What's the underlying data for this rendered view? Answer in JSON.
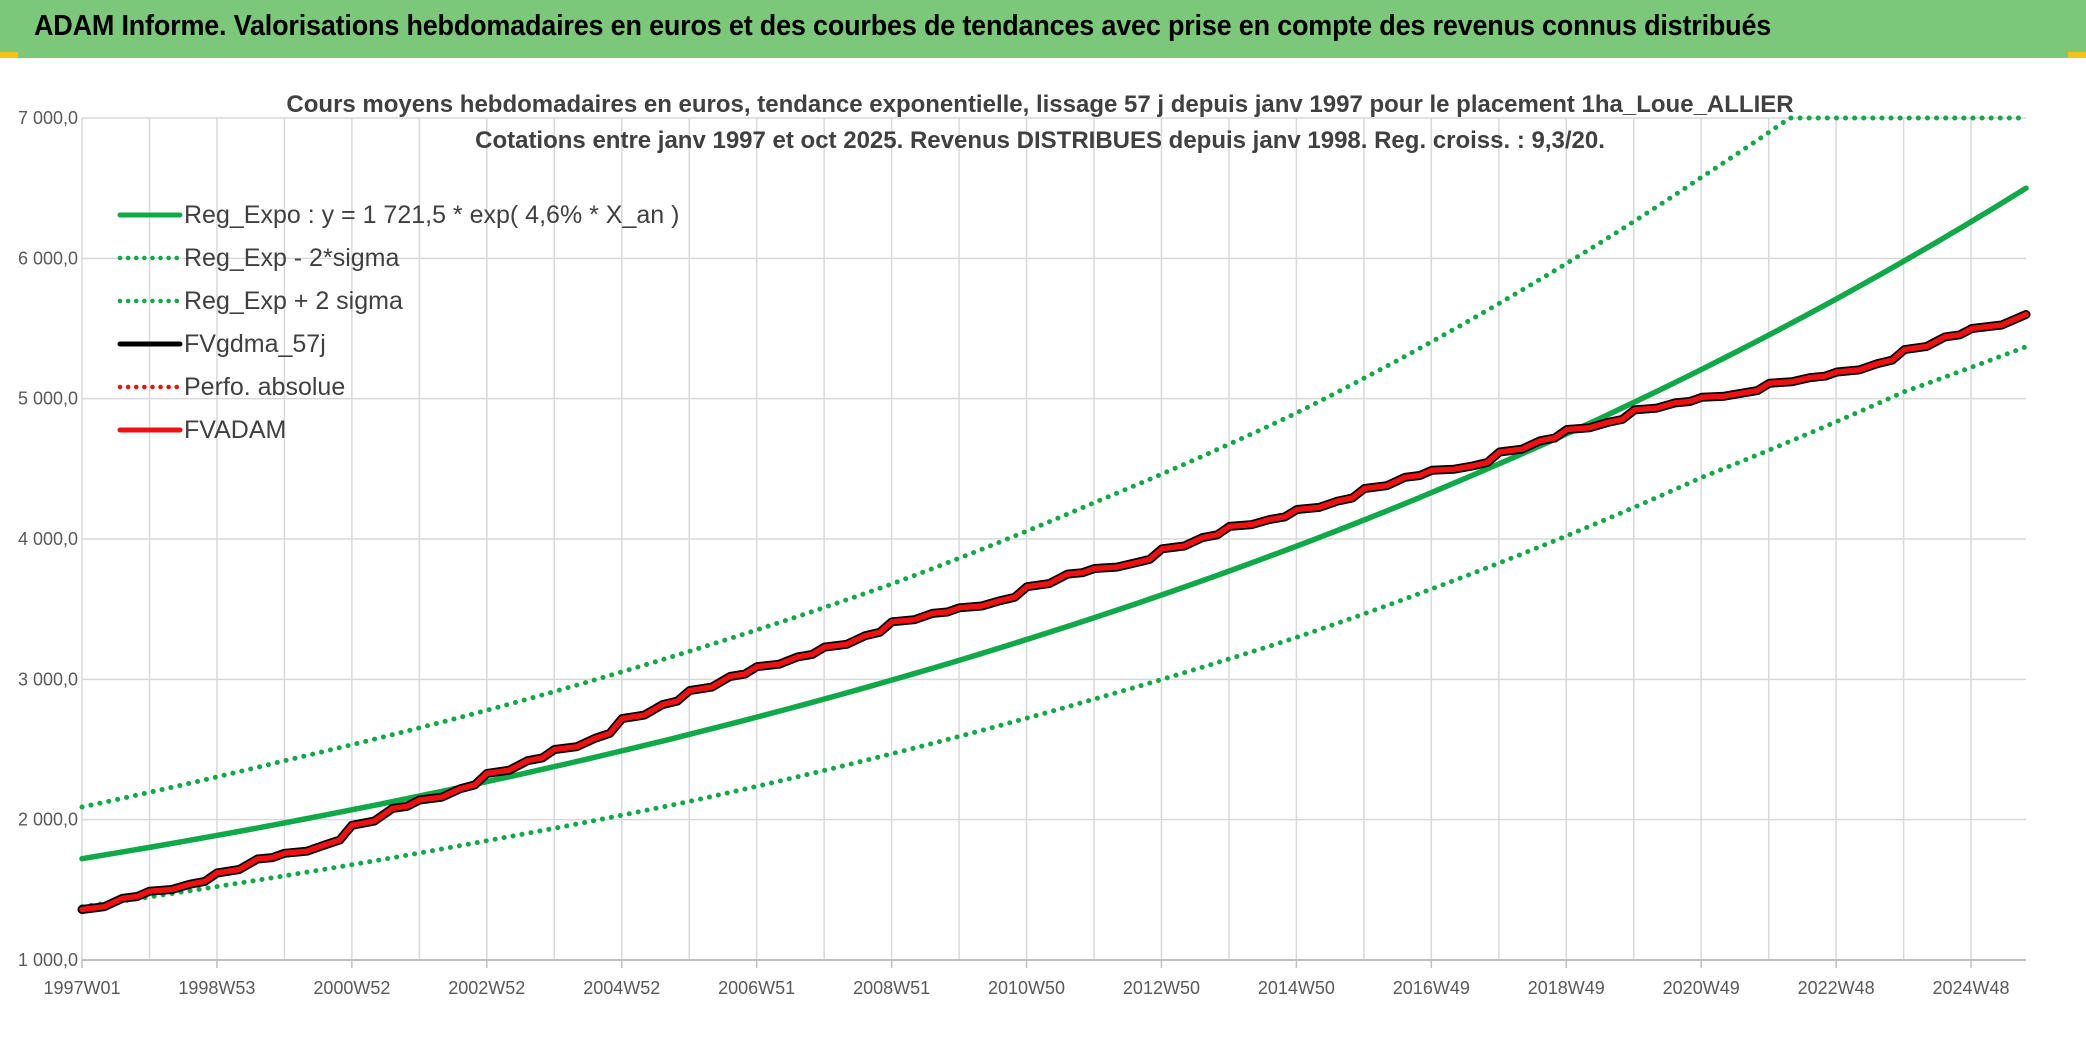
{
  "header": {
    "title": "ADAM Informe. Valorisations hebdomadaires en euros et des courbes de tendances avec prise en compte des revenus connus distribués"
  },
  "colors": {
    "header_bg": "#7cc87a",
    "green": "#11a84a",
    "red": "#ee1111",
    "black": "#000000",
    "grid": "#d9d9d9"
  },
  "chart_data": {
    "type": "line",
    "title": "Cours moyens hebdomadaires en euros, tendance exponentielle, lissage 57 j depuis janv 1997 pour le placement 1ha_Loue_ALLIER",
    "subtitle": "Cotations entre janv 1997 et oct 2025. Revenus DISTRIBUES depuis janv 1998. Reg. croiss. : 9,3/20.",
    "xlabel": "",
    "ylabel": "",
    "ylim": [
      1000,
      7000
    ],
    "yticks": [
      "1 000,0",
      "2 000,0",
      "3 000,0",
      "4 000,0",
      "5 000,0",
      "6 000,0",
      "7 000,0"
    ],
    "xticks": [
      "1997W01",
      "1998W53",
      "2000W52",
      "2002W52",
      "2004W52",
      "2006W51",
      "2008W51",
      "2010W50",
      "2012W50",
      "2014W50",
      "2016W49",
      "2018W49",
      "2020W49",
      "2022W48",
      "2024W48"
    ],
    "xrange_years": [
      1997.0,
      2025.8
    ],
    "grid": true,
    "legend_position": "top-left",
    "series": [
      {
        "name": "Reg_Expo : y = 1 721,5 * exp( 4,6% *  X_an )",
        "color": "#11a84a",
        "style": "solid",
        "x": [
          1997,
          2000,
          2003,
          2006,
          2009,
          2012,
          2015,
          2018,
          2021,
          2024,
          2025.8
        ],
        "y": [
          1722,
          1977,
          2271,
          2608,
          2995,
          3440,
          3950,
          4537,
          5210,
          5983,
          6500
        ]
      },
      {
        "name": "Reg_Exp - 2*sigma",
        "color": "#11a84a",
        "style": "dotted",
        "x": [
          1997,
          2000,
          2003,
          2006,
          2009,
          2012,
          2015,
          2018,
          2021,
          2024,
          2025.8
        ],
        "y": [
          1380,
          1600,
          1850,
          2130,
          2470,
          2860,
          3300,
          3830,
          4440,
          5050,
          5370
        ]
      },
      {
        "name": "Reg_Exp + 2 sigma",
        "color": "#11a84a",
        "style": "dotted",
        "x": [
          1997,
          2000,
          2003,
          2006,
          2009,
          2012,
          2015,
          2018,
          2021,
          2022.3,
          2025.8
        ],
        "y": [
          2090,
          2420,
          2780,
          3200,
          3680,
          4260,
          4900,
          5680,
          6580,
          7000,
          7000
        ]
      },
      {
        "name": "FVgdma_57j",
        "color": "#000000",
        "style": "solid",
        "x": [
          1997.0,
          1997.6,
          1998.0,
          1998.6,
          1999.0,
          1999.6,
          2000.0,
          2000.6,
          2001.0,
          2001.6,
          2002.0,
          2002.6,
          2003.0,
          2003.6,
          2004.0,
          2004.6,
          2005.0,
          2005.6,
          2006.0,
          2006.6,
          2007.0,
          2007.6,
          2008.0,
          2008.6,
          2009.0,
          2009.6,
          2010.0,
          2010.6,
          2011.0,
          2011.6,
          2012.0,
          2012.6,
          2013.0,
          2013.6,
          2014.0,
          2014.6,
          2015.0,
          2015.6,
          2016.0,
          2016.6,
          2017.0,
          2017.6,
          2018.0,
          2018.6,
          2019.0,
          2019.6,
          2020.0,
          2020.6,
          2021.0,
          2021.6,
          2022.0,
          2022.6,
          2023.0,
          2023.6,
          2024.0,
          2024.6,
          2025.0,
          2025.8
        ],
        "y": [
          1360,
          1440,
          1490,
          1540,
          1620,
          1720,
          1760,
          1820,
          1960,
          2080,
          2140,
          2220,
          2330,
          2420,
          2500,
          2580,
          2720,
          2820,
          2920,
          3020,
          3090,
          3160,
          3230,
          3310,
          3410,
          3470,
          3510,
          3560,
          3660,
          3750,
          3790,
          3830,
          3930,
          4010,
          4090,
          4140,
          4210,
          4270,
          4360,
          4440,
          4490,
          4520,
          4620,
          4700,
          4780,
          4830,
          4920,
          4970,
          5010,
          5040,
          5110,
          5150,
          5190,
          5250,
          5350,
          5440,
          5500,
          5600
        ]
      },
      {
        "name": "Perfo. absolue",
        "color": "#ee1111",
        "style": "dotted",
        "x": [],
        "y": []
      },
      {
        "name": "FVADAM",
        "color": "#ee1111",
        "style": "solid",
        "x": [
          1997.0,
          1997.6,
          1998.0,
          1998.6,
          1999.0,
          1999.6,
          2000.0,
          2000.6,
          2001.0,
          2001.6,
          2002.0,
          2002.6,
          2003.0,
          2003.6,
          2004.0,
          2004.6,
          2005.0,
          2005.6,
          2006.0,
          2006.6,
          2007.0,
          2007.6,
          2008.0,
          2008.6,
          2009.0,
          2009.6,
          2010.0,
          2010.6,
          2011.0,
          2011.6,
          2012.0,
          2012.6,
          2013.0,
          2013.6,
          2014.0,
          2014.6,
          2015.0,
          2015.6,
          2016.0,
          2016.6,
          2017.0,
          2017.6,
          2018.0,
          2018.6,
          2019.0,
          2019.6,
          2020.0,
          2020.6,
          2021.0,
          2021.6,
          2022.0,
          2022.6,
          2023.0,
          2023.6,
          2024.0,
          2024.6,
          2025.0,
          2025.8
        ],
        "y": [
          1360,
          1440,
          1490,
          1540,
          1620,
          1720,
          1760,
          1820,
          1960,
          2080,
          2140,
          2220,
          2330,
          2420,
          2500,
          2580,
          2720,
          2820,
          2920,
          3020,
          3090,
          3160,
          3230,
          3310,
          3410,
          3470,
          3510,
          3560,
          3660,
          3750,
          3790,
          3830,
          3930,
          4010,
          4090,
          4140,
          4210,
          4270,
          4360,
          4440,
          4490,
          4520,
          4620,
          4700,
          4780,
          4830,
          4920,
          4970,
          5010,
          5040,
          5110,
          5150,
          5190,
          5250,
          5350,
          5440,
          5500,
          5600
        ]
      }
    ]
  }
}
